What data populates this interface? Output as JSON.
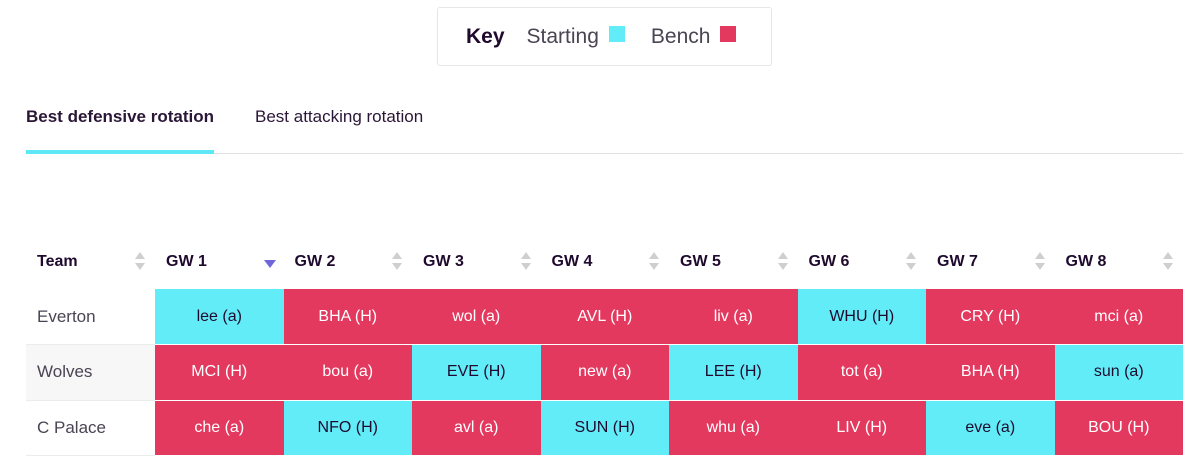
{
  "key": {
    "title": "Key",
    "starting_label": "Starting",
    "bench_label": "Bench",
    "starting_color": "#62ecf7",
    "bench_color": "#e4395f"
  },
  "tabs": [
    {
      "label": "Best defensive rotation",
      "active": true
    },
    {
      "label": "Best attacking rotation",
      "active": false
    }
  ],
  "table": {
    "headers": [
      "Team",
      "GW 1",
      "GW 2",
      "GW 3",
      "GW 4",
      "GW 5",
      "GW 6",
      "GW 7",
      "GW 8"
    ],
    "sorted_column": "GW 1",
    "rows": [
      {
        "team": "Everton",
        "cells": [
          {
            "text": "lee (a)",
            "status": "starting"
          },
          {
            "text": "BHA (H)",
            "status": "bench"
          },
          {
            "text": "wol (a)",
            "status": "bench"
          },
          {
            "text": "AVL (H)",
            "status": "bench"
          },
          {
            "text": "liv (a)",
            "status": "bench"
          },
          {
            "text": "WHU (H)",
            "status": "starting"
          },
          {
            "text": "CRY (H)",
            "status": "bench"
          },
          {
            "text": "mci (a)",
            "status": "bench"
          }
        ]
      },
      {
        "team": "Wolves",
        "cells": [
          {
            "text": "MCI (H)",
            "status": "bench"
          },
          {
            "text": "bou (a)",
            "status": "bench"
          },
          {
            "text": "EVE (H)",
            "status": "starting"
          },
          {
            "text": "new (a)",
            "status": "bench"
          },
          {
            "text": "LEE (H)",
            "status": "starting"
          },
          {
            "text": "tot (a)",
            "status": "bench"
          },
          {
            "text": "BHA (H)",
            "status": "bench"
          },
          {
            "text": "sun (a)",
            "status": "starting"
          }
        ]
      },
      {
        "team": "C Palace",
        "cells": [
          {
            "text": "che (a)",
            "status": "bench"
          },
          {
            "text": "NFO (H)",
            "status": "starting"
          },
          {
            "text": "avl (a)",
            "status": "bench"
          },
          {
            "text": "SUN (H)",
            "status": "starting"
          },
          {
            "text": "whu (a)",
            "status": "bench"
          },
          {
            "text": "LIV (H)",
            "status": "bench"
          },
          {
            "text": "eve (a)",
            "status": "starting"
          },
          {
            "text": "BOU (H)",
            "status": "bench"
          }
        ]
      }
    ]
  }
}
